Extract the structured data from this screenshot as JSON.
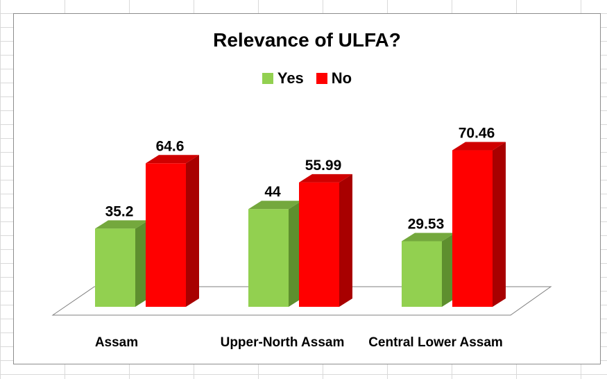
{
  "chart_data": {
    "type": "bar",
    "title": "Relevance of ULFA?",
    "categories": [
      "Assam",
      "Upper-North Assam",
      "Central Lower Assam"
    ],
    "series": [
      {
        "name": "Yes",
        "values": [
          35.2,
          44,
          29.53
        ],
        "labels": [
          "35.2",
          "44",
          "29.53"
        ],
        "color": "#92d050",
        "side_color": "#5e8f2e",
        "top_color": "#74a83d"
      },
      {
        "name": "No",
        "values": [
          64.6,
          55.99,
          70.46
        ],
        "labels": [
          "64.6",
          "55.99",
          "70.46"
        ],
        "color": "#ff0000",
        "side_color": "#a80000",
        "top_color": "#d00000"
      }
    ],
    "legend_position": "top",
    "ylim": [
      0,
      80
    ],
    "grid": false,
    "style": "3d-clustered-column"
  }
}
